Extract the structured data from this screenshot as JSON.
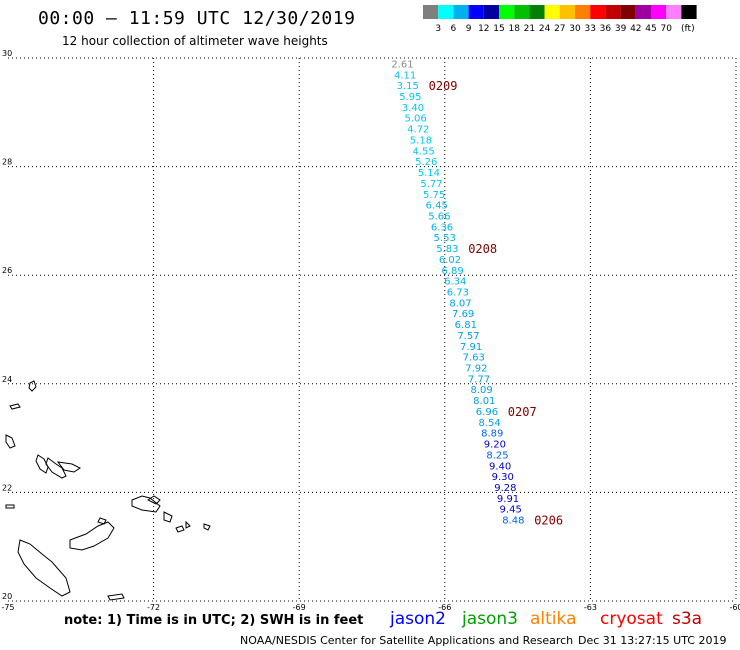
{
  "header": {
    "title": "00:00 – 11:59 UTC 12/30/2019",
    "subtitle": "12 hour collection of altimeter wave heights"
  },
  "legend": {
    "unit": "(ft)",
    "labels": [
      "3",
      "6",
      "9",
      "12",
      "15",
      "18",
      "21",
      "24",
      "27",
      "30",
      "33",
      "36",
      "39",
      "42",
      "45",
      "70"
    ],
    "colors": [
      "#7f7f7f",
      "#00ffff",
      "#00b0f0",
      "#0000ff",
      "#0000a0",
      "#00ff00",
      "#00c000",
      "#008000",
      "#ffff00",
      "#ffc000",
      "#ff8000",
      "#ff0000",
      "#c00000",
      "#800000",
      "#a000a0",
      "#ff00ff",
      "#ff80ff",
      "#000000"
    ]
  },
  "map": {
    "lon_range": [
      -75,
      -60
    ],
    "lat_range": [
      20,
      30
    ],
    "lon_ticks": [
      "-75",
      "-72",
      "-69",
      "-66",
      "-63",
      "-60"
    ],
    "lat_ticks": [
      "30",
      "28",
      "26",
      "24",
      "22",
      "20"
    ],
    "track": {
      "satellite": "jason3",
      "points": [
        {
          "label": "2.61",
          "lat": 29.9,
          "color": "#8c8c8c"
        },
        {
          "label": "4.11",
          "lat": 29.7,
          "color": "#00c8f0"
        },
        {
          "label": "3.15",
          "lat": 29.5,
          "color": "#00c8f0"
        },
        {
          "label": "5.95",
          "lat": 29.3,
          "color": "#00c8f0"
        },
        {
          "label": "3.40",
          "lat": 29.1,
          "color": "#00c8f0"
        },
        {
          "label": "5.06",
          "lat": 28.9,
          "color": "#00c8f0"
        },
        {
          "label": "4.72",
          "lat": 28.7,
          "color": "#00c8f0"
        },
        {
          "label": "5.18",
          "lat": 28.5,
          "color": "#00c8f0"
        },
        {
          "label": "4.55",
          "lat": 28.3,
          "color": "#00c8f0"
        },
        {
          "label": "5.26",
          "lat": 28.1,
          "color": "#00c8f0"
        },
        {
          "label": "5.14",
          "lat": 27.9,
          "color": "#00c8f0"
        },
        {
          "label": "5.77",
          "lat": 27.7,
          "color": "#00c8f0"
        },
        {
          "label": "5.75",
          "lat": 27.5,
          "color": "#00c8f0"
        },
        {
          "label": "6.45",
          "lat": 27.3,
          "color": "#00b4e6"
        },
        {
          "label": "5.66",
          "lat": 27.1,
          "color": "#00b4e6"
        },
        {
          "label": "6.36",
          "lat": 26.9,
          "color": "#00b4e6"
        },
        {
          "label": "5.53",
          "lat": 26.7,
          "color": "#00b4e6"
        },
        {
          "label": "5.83",
          "lat": 26.5,
          "color": "#00b4e6"
        },
        {
          "label": "6.02",
          "lat": 26.3,
          "color": "#00b4e6"
        },
        {
          "label": "6.89",
          "lat": 26.1,
          "color": "#00b4e6"
        },
        {
          "label": "6.34",
          "lat": 25.9,
          "color": "#00b4e6"
        },
        {
          "label": "6.73",
          "lat": 25.7,
          "color": "#00b4e6"
        },
        {
          "label": "8.07",
          "lat": 25.5,
          "color": "#00a0e6"
        },
        {
          "label": "7.69",
          "lat": 25.3,
          "color": "#00a0e6"
        },
        {
          "label": "6.81",
          "lat": 25.1,
          "color": "#00a0e6"
        },
        {
          "label": "7.57",
          "lat": 24.9,
          "color": "#00a0e6"
        },
        {
          "label": "7.91",
          "lat": 24.7,
          "color": "#00a0e6"
        },
        {
          "label": "7.63",
          "lat": 24.5,
          "color": "#00a0e6"
        },
        {
          "label": "7.92",
          "lat": 24.3,
          "color": "#00a0e6"
        },
        {
          "label": "7.77",
          "lat": 24.1,
          "color": "#00a0e6"
        },
        {
          "label": "8.09",
          "lat": 23.9,
          "color": "#00a0e6"
        },
        {
          "label": "8.01",
          "lat": 23.7,
          "color": "#00a0e6"
        },
        {
          "label": "6.96",
          "lat": 23.5,
          "color": "#00a0e6"
        },
        {
          "label": "8.54",
          "lat": 23.3,
          "color": "#00a0e6"
        },
        {
          "label": "8.89",
          "lat": 23.1,
          "color": "#0064f0"
        },
        {
          "label": "9.20",
          "lat": 22.9,
          "color": "#0000c8"
        },
        {
          "label": "8.25",
          "lat": 22.7,
          "color": "#0064f0"
        },
        {
          "label": "9.40",
          "lat": 22.5,
          "color": "#0000c8"
        },
        {
          "label": "9.30",
          "lat": 22.3,
          "color": "#0000c8"
        },
        {
          "label": "9.28",
          "lat": 22.1,
          "color": "#0000c8"
        },
        {
          "label": "9.91",
          "lat": 21.9,
          "color": "#0000c8"
        },
        {
          "label": "9.45",
          "lat": 21.7,
          "color": "#0000c8"
        },
        {
          "label": "8.48",
          "lat": 21.5,
          "color": "#0064f0"
        }
      ],
      "times": [
        {
          "label": "0209",
          "lat": 29.5
        },
        {
          "label": "0208",
          "lat": 26.5
        },
        {
          "label": "0207",
          "lat": 23.5
        },
        {
          "label": "0206",
          "lat": 21.5
        }
      ]
    }
  },
  "footer": {
    "note": "note: 1) Time is in UTC; 2) SWH is in feet",
    "satellites": [
      {
        "name": "jason2",
        "color": "#0000ff"
      },
      {
        "name": "jason3",
        "color": "#00a000"
      },
      {
        "name": "altika",
        "color": "#ff8000"
      },
      {
        "name": "cryosat",
        "color": "#ff0000"
      },
      {
        "name": "s3a",
        "color": "#c00000"
      }
    ],
    "credit": "NOAA/NESDIS Center for Satellite Applications and Research",
    "timestamp": "Dec 31 13:27:15 UTC 2019"
  }
}
